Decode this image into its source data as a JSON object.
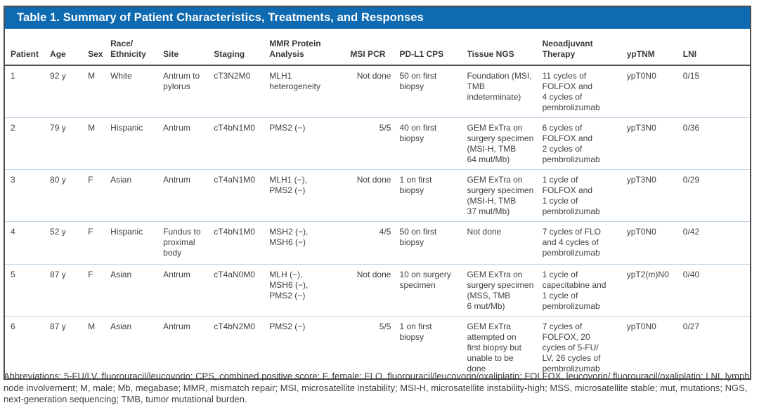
{
  "accent_color": "#0e6ab1",
  "row_divider_color": "#c2d6ea",
  "border_color": "#4d4d4f",
  "table": {
    "title": "Table 1. Summary of Patient Characteristics, Treatments, and Responses",
    "columns": [
      "Patient",
      "Age",
      "Sex",
      "Race/\nEthnicity",
      "Site",
      "Staging",
      "MMR Protein\nAnalysis",
      "MSI PCR",
      "PD-L1 CPS",
      "Tissue NGS",
      "Neoadjuvant\nTherapy",
      "ypTNM",
      "LNI"
    ],
    "rows": [
      [
        "1",
        "92 y",
        "M",
        "White",
        "Antrum to\npylorus",
        "cT3N2M0",
        "MLH1\nheterogeneity",
        "Not done",
        "50 on first\nbiopsy",
        "Foundation (MSI,\nTMB\nindeterminate)",
        "11 cycles of\nFOLFOX and\n4 cycles of\npembrolizumab",
        "ypT0N0",
        "0/15"
      ],
      [
        "2",
        "79 y",
        "M",
        "Hispanic",
        "Antrum",
        "cT4bN1M0",
        "PMS2 (−)",
        "5/5",
        "40 on first\nbiopsy",
        "GEM ExTra on\nsurgery specimen\n(MSI-H, TMB\n64 mut/Mb)",
        "6 cycles of\nFOLFOX and\n2 cycles of\npembrolizumab",
        "ypT3N0",
        "0/36"
      ],
      [
        "3",
        "80 y",
        "F",
        "Asian",
        "Antrum",
        "cT4aN1M0",
        "MLH1 (−),\nPMS2 (−)",
        "Not done",
        "1 on first\nbiopsy",
        "GEM ExTra on\nsurgery specimen\n(MSI-H, TMB\n37 mut/Mb)",
        "1 cycle of\nFOLFOX and\n1 cycle of\npembrolizumab",
        "ypT3N0",
        "0/29"
      ],
      [
        "4",
        "52 y",
        "F",
        "Hispanic",
        "Fundus to\nproximal\nbody",
        "cT4bN1M0",
        "MSH2 (−),\nMSH6 (−)",
        "4/5",
        "50 on first\nbiopsy",
        "Not done",
        "7 cycles of FLO\nand 4 cycles of\npembrolizumab",
        "ypT0N0",
        "0/42"
      ],
      [
        "5",
        "87 y",
        "F",
        "Asian",
        "Antrum",
        "cT4aN0M0",
        "MLH (−),\nMSH6 (−),\nPMS2 (−)",
        "Not done",
        "10 on surgery\nspecimen",
        "GEM ExTra on\nsurgery specimen\n(MSS, TMB\n6 mut/Mb)",
        "1 cycle of\ncapecitabine and\n1 cycle of\npembrolizumab",
        "ypT2(m)N0",
        "0/40"
      ],
      [
        "6",
        "87 y",
        "M",
        "Asian",
        "Antrum",
        "cT4bN2M0",
        "PMS2 (−)",
        "5/5",
        "1 on first\nbiopsy",
        "GEM ExTra\nattempted on\nfirst biopsy but\nunable to be\ndone",
        "7 cycles of\nFOLFOX, 20\ncycles of 5-FU/\nLV, 26 cycles of\npembrolizumab",
        "ypT0N0",
        "0/27"
      ]
    ]
  },
  "footnote": "Abbreviations: 5-FU/LV, fluorouracil/leucovorin; CPS, combined positive score; F, female; FLO, fluorouracil/leucovorin/oxaliplatin; FOLFOX, leucovorin/ fluorouracil/oxaliplatin; LNI, lymph node involvement; M, male; Mb, megabase; MMR, mismatch repair; MSI, microsatellite instability; MSI-H, microsatellite instability-high; MSS, microsatellite stable; mut, mutations; NGS, next-generation sequencing; TMB, tumor mutational burden."
}
